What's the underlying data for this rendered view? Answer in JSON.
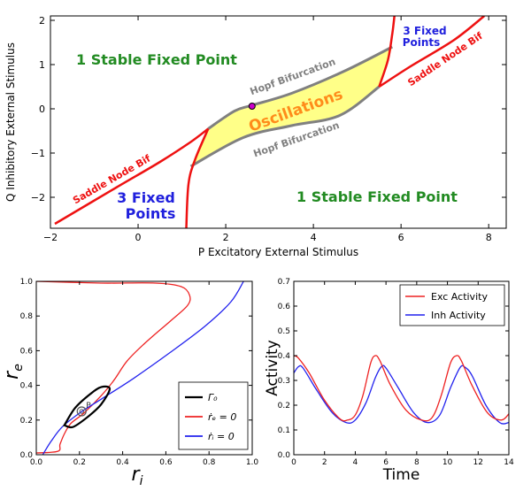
{
  "chart_data": [
    {
      "type": "bifurcation-diagram",
      "xlabel": "P Excitatory External Stimulus",
      "ylabel": "Q Inhibitory External Stimulus",
      "xlim": [
        -2,
        8.4
      ],
      "ylim": [
        -2.7,
        2.1
      ],
      "xticks": [
        -2,
        0,
        2,
        4,
        6,
        8
      ],
      "yticks": [
        -2,
        -1,
        0,
        1,
        2
      ],
      "region_labels": [
        {
          "text": "1 Stable Fixed Point",
          "color": "#228B22"
        },
        {
          "text": "1 Stable Fixed Point",
          "color": "#228B22"
        },
        {
          "text": "3 Fixed Points",
          "color": "#1f1fdd"
        },
        {
          "text": "3 Fixed Points",
          "color": "#1f1fdd"
        },
        {
          "text": "Oscillations",
          "color": "#ff8c1a"
        },
        {
          "text": "Hopf Bifurcation",
          "color": "#808080"
        },
        {
          "text": "Hopf Bifurcation",
          "color": "#808080"
        },
        {
          "text": "Saddle Node Bif",
          "color": "#ee1111"
        },
        {
          "text": "Saddle Node Bif",
          "color": "#ee1111"
        }
      ],
      "saddle_node_lower": {
        "upper_branch": [
          [
            -1.9,
            -2.6
          ],
          [
            -0.5,
            -1.78
          ],
          [
            0.5,
            -1.2
          ],
          [
            1.2,
            -0.75
          ],
          [
            1.6,
            -0.45
          ]
        ],
        "lower_branch": [
          [
            1.1,
            -2.7
          ],
          [
            1.15,
            -1.7
          ],
          [
            1.3,
            -1.15
          ],
          [
            1.6,
            -0.45
          ]
        ]
      },
      "saddle_node_upper": {
        "upper_branch": [
          [
            5.5,
            0.5
          ],
          [
            5.7,
            1.1
          ],
          [
            5.8,
            1.7
          ],
          [
            5.85,
            2.1
          ]
        ],
        "lower_branch": [
          [
            5.5,
            0.5
          ],
          [
            6.2,
            0.95
          ],
          [
            7.2,
            1.55
          ],
          [
            7.9,
            2.1
          ]
        ]
      },
      "hopf_upper": [
        [
          1.6,
          -0.45
        ],
        [
          2.2,
          -0.05
        ],
        [
          2.6,
          0.08
        ],
        [
          3.5,
          0.35
        ],
        [
          4.7,
          0.85
        ],
        [
          5.8,
          1.4
        ]
      ],
      "hopf_lower": [
        [
          1.2,
          -1.3
        ],
        [
          2.4,
          -0.65
        ],
        [
          3.5,
          -0.38
        ],
        [
          4.6,
          -0.15
        ],
        [
          5.5,
          0.5
        ]
      ],
      "marker": {
        "p": 2.6,
        "q": 0.06,
        "color": "#cc00cc"
      }
    },
    {
      "type": "line",
      "xlabel": "r_i",
      "ylabel": "r_e",
      "xlim": [
        0,
        1
      ],
      "ylim": [
        0,
        1
      ],
      "xticks": [
        "0.0",
        "0.2",
        "0.4",
        "0.6",
        "0.8",
        "1.0"
      ],
      "yticks": [
        "0.0",
        "0.2",
        "0.4",
        "0.6",
        "0.8",
        "1.0"
      ],
      "legend": [
        "Γ₀",
        "ṙₑ = 0",
        "ṙᵢ = 0"
      ],
      "legend_position": "lower-right",
      "point_label": "P",
      "series": [
        {
          "name": "Γ₀",
          "color": "#000000",
          "points": [
            [
              0.13,
              0.17
            ],
            [
              0.18,
              0.27
            ],
            [
              0.25,
              0.35
            ],
            [
              0.3,
              0.39
            ],
            [
              0.34,
              0.38
            ],
            [
              0.3,
              0.29
            ],
            [
              0.24,
              0.22
            ],
            [
              0.17,
              0.16
            ],
            [
              0.13,
              0.17
            ]
          ]
        },
        {
          "name": "ṙₑ = 0",
          "color": "#ee2222",
          "points": [
            [
              0.0,
              1.0
            ],
            [
              0.3,
              0.99
            ],
            [
              0.55,
              0.99
            ],
            [
              0.67,
              0.97
            ],
            [
              0.71,
              0.92
            ],
            [
              0.7,
              0.86
            ],
            [
              0.62,
              0.77
            ],
            [
              0.5,
              0.64
            ],
            [
              0.42,
              0.54
            ],
            [
              0.36,
              0.43
            ],
            [
              0.3,
              0.34
            ],
            [
              0.22,
              0.24
            ],
            [
              0.16,
              0.18
            ],
            [
              0.13,
              0.12
            ],
            [
              0.11,
              0.06
            ],
            [
              0.1,
              0.02
            ],
            [
              0.0,
              0.01
            ]
          ]
        },
        {
          "name": "ṙᵢ = 0",
          "color": "#2222ee",
          "points": [
            [
              0.03,
              0.0
            ],
            [
              0.07,
              0.08
            ],
            [
              0.12,
              0.16
            ],
            [
              0.2,
              0.24
            ],
            [
              0.3,
              0.32
            ],
            [
              0.45,
              0.44
            ],
            [
              0.62,
              0.59
            ],
            [
              0.78,
              0.74
            ],
            [
              0.9,
              0.88
            ],
            [
              0.96,
              1.0
            ]
          ]
        }
      ],
      "marker": {
        "x": 0.21,
        "y": 0.25
      }
    },
    {
      "type": "line",
      "xlabel": "Time",
      "ylabel": "Activity",
      "xlim": [
        0,
        14
      ],
      "ylim": [
        0,
        0.7
      ],
      "xticks": [
        "0",
        "2",
        "4",
        "6",
        "8",
        "10",
        "12",
        "14"
      ],
      "yticks": [
        "0.0",
        "0.1",
        "0.2",
        "0.3",
        "0.4",
        "0.5",
        "0.6",
        "0.7"
      ],
      "legend_position": "top-right",
      "period": 5.3,
      "series": [
        {
          "name": "Exc Activity",
          "color": "#ee2222",
          "points": [
            [
              0,
              0.4
            ],
            [
              0.3,
              0.39
            ],
            [
              1,
              0.33
            ],
            [
              2,
              0.22
            ],
            [
              3,
              0.145
            ],
            [
              3.5,
              0.14
            ],
            [
              4,
              0.16
            ],
            [
              4.5,
              0.24
            ],
            [
              5,
              0.37
            ],
            [
              5.3,
              0.4
            ],
            [
              5.6,
              0.38
            ],
            [
              6.3,
              0.28
            ],
            [
              7.3,
              0.18
            ],
            [
              8.3,
              0.14
            ],
            [
              9,
              0.15
            ],
            [
              9.6,
              0.24
            ],
            [
              10.2,
              0.37
            ],
            [
              10.6,
              0.4
            ],
            [
              10.9,
              0.38
            ],
            [
              11.6,
              0.28
            ],
            [
              12.6,
              0.17
            ],
            [
              13.5,
              0.14
            ],
            [
              14,
              0.165
            ]
          ]
        },
        {
          "name": "Inh Activity",
          "color": "#2222ee",
          "points": [
            [
              0,
              0.33
            ],
            [
              0.3,
              0.355
            ],
            [
              0.6,
              0.35
            ],
            [
              1.5,
              0.26
            ],
            [
              2.5,
              0.17
            ],
            [
              3.4,
              0.13
            ],
            [
              4,
              0.14
            ],
            [
              4.7,
              0.21
            ],
            [
              5.3,
              0.31
            ],
            [
              5.7,
              0.355
            ],
            [
              6,
              0.35
            ],
            [
              6.8,
              0.27
            ],
            [
              7.8,
              0.17
            ],
            [
              8.7,
              0.13
            ],
            [
              9.5,
              0.16
            ],
            [
              10.2,
              0.27
            ],
            [
              10.8,
              0.35
            ],
            [
              11.1,
              0.355
            ],
            [
              11.6,
              0.32
            ],
            [
              12.5,
              0.2
            ],
            [
              13.4,
              0.13
            ],
            [
              14,
              0.13
            ]
          ]
        }
      ]
    }
  ]
}
